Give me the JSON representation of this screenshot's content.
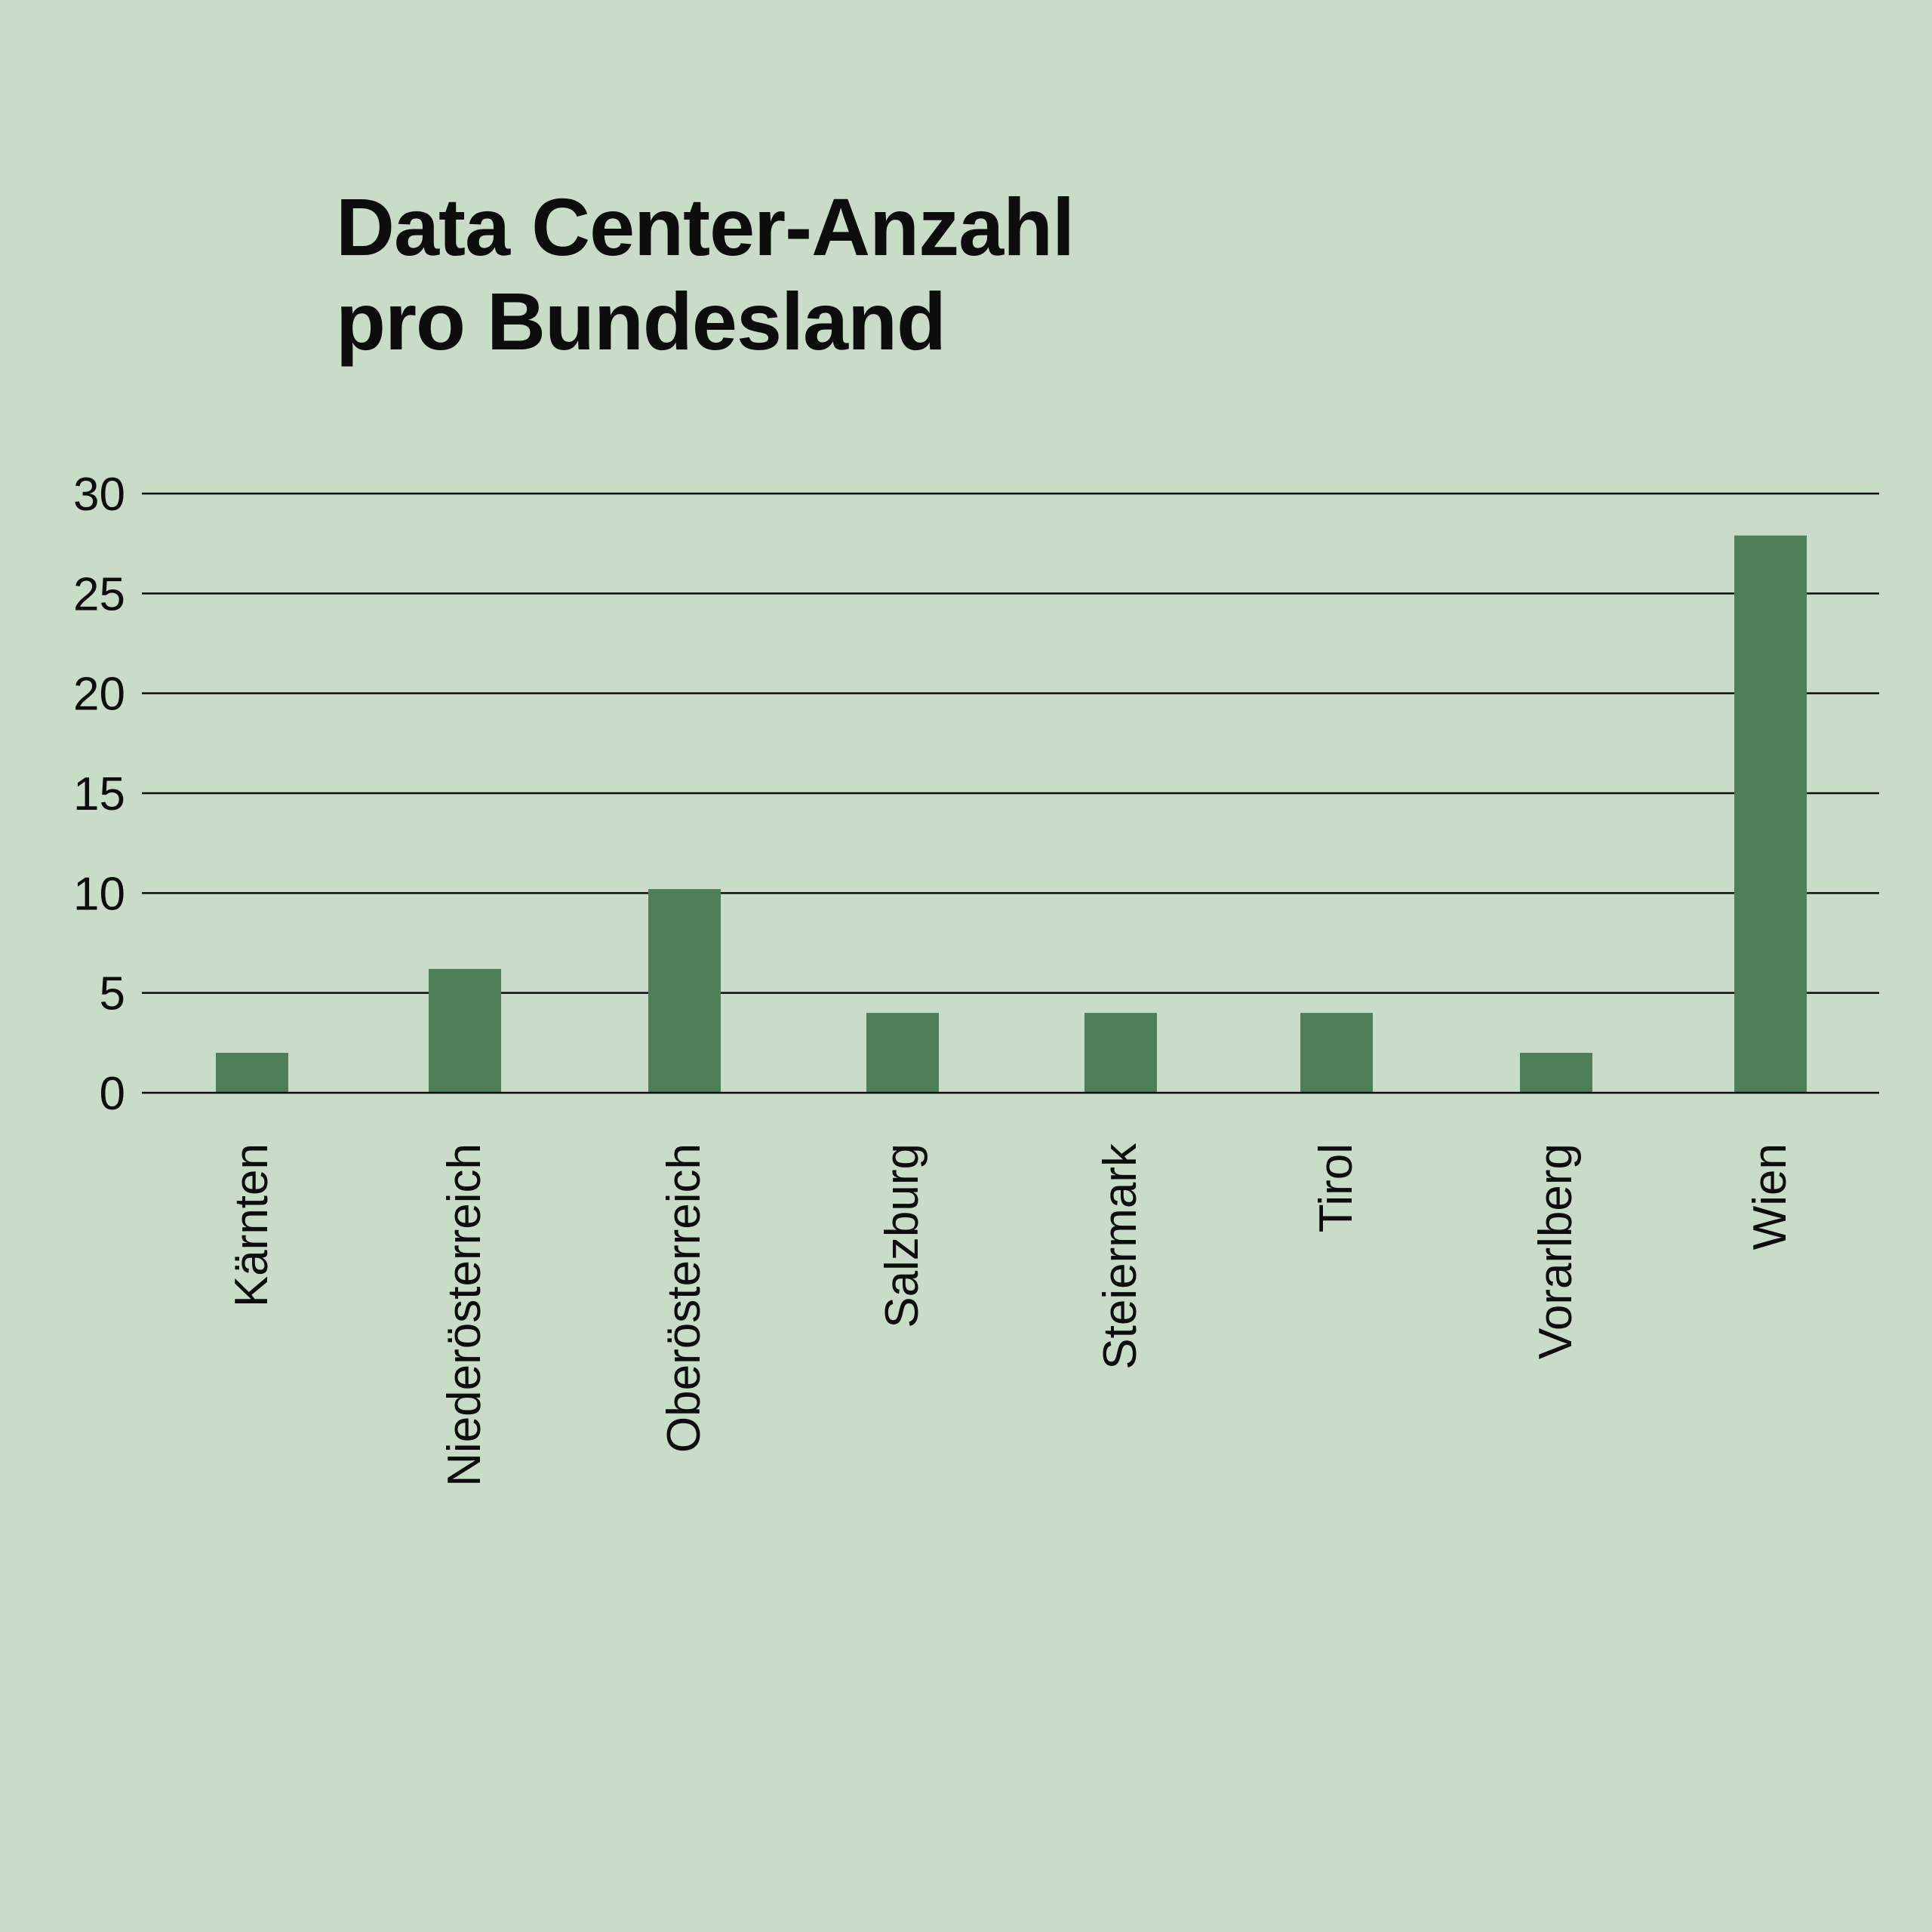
{
  "chart_data": {
    "type": "bar",
    "title_lines": [
      "Data Center-Anzahl",
      "pro Bundesland"
    ],
    "xlabel": "",
    "ylabel": "",
    "categories": [
      "Kärnten",
      "Niederösterreich",
      "Oberösterreich",
      "Salzburg",
      "Steiermark",
      "Tirol",
      "Vorarlberg",
      "Wien"
    ],
    "values": [
      2,
      6.2,
      10.2,
      4,
      4,
      4,
      2,
      27.9
    ],
    "ylim": [
      0,
      30
    ],
    "yticks": [
      0,
      5,
      10,
      15,
      20,
      25,
      30
    ],
    "grid": true,
    "legend": "none",
    "bar_color": "#4f7f59",
    "background_color": "#c9dcc8",
    "grid_color": "#0d0d0d"
  }
}
